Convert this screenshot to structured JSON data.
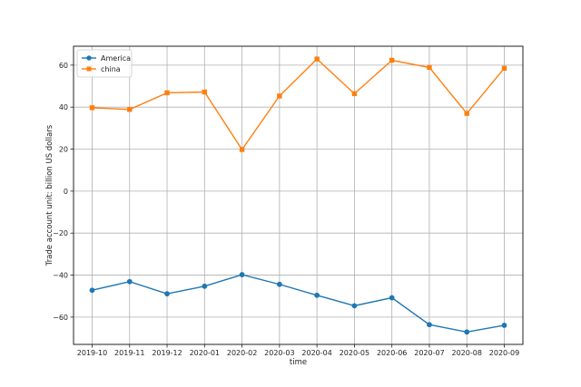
{
  "chart_data": {
    "type": "line",
    "title": "",
    "xlabel": "time",
    "ylabel": "Trade account unit: billion US dollars",
    "categories": [
      "2019-10",
      "2019-11",
      "2019-12",
      "2020-01",
      "2020-02",
      "2020-03",
      "2020-04",
      "2020-05",
      "2020-06",
      "2020-07",
      "2020-08",
      "2020-09"
    ],
    "ylim": [
      -73,
      69
    ],
    "yticks": [
      -60,
      -40,
      -20,
      0,
      20,
      40,
      60
    ],
    "ytick_labels": [
      "−60",
      "−40",
      "−20",
      "0",
      "20",
      "40",
      "60"
    ],
    "grid": true,
    "legend_position": "top-left",
    "series": [
      {
        "name": "America",
        "color": "#1f77b4",
        "marker": "circle",
        "values": [
          -47.2,
          -43.1,
          -48.9,
          -45.3,
          -39.8,
          -44.4,
          -49.6,
          -54.6,
          -50.8,
          -63.6,
          -67.1,
          -63.9
        ]
      },
      {
        "name": "china",
        "color": "#ff7f0e",
        "marker": "square",
        "values": [
          39.7,
          38.9,
          46.8,
          47.2,
          19.8,
          45.3,
          62.9,
          46.4,
          62.3,
          58.9,
          37.0,
          58.5
        ]
      }
    ]
  }
}
